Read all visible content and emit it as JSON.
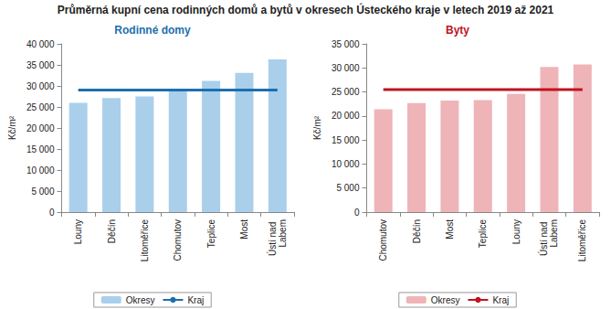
{
  "title": "Průměrná kupní cena rodinných domů a bytů v okresech Ústeckého kraje v letech 2019 až 2021",
  "chart_data": [
    {
      "type": "bar",
      "title": "Rodinné domy",
      "y_label": "Kč/m²",
      "categories": [
        "Louny",
        "Děčín",
        "Litoměřice",
        "Chomutov",
        "Teplice",
        "Most",
        "Ústí nad Labem"
      ],
      "series": [
        {
          "name": "Okresy",
          "type": "bar",
          "color": "#a9cfeb",
          "values": [
            26000,
            27100,
            27500,
            29200,
            31200,
            33100,
            36300
          ]
        },
        {
          "name": "Kraj",
          "type": "line",
          "color": "#1c6faf",
          "values": [
            29000,
            29000,
            29000,
            29000,
            29000,
            29000,
            29000
          ]
        }
      ],
      "ylim": [
        0,
        40000
      ],
      "yticks": [
        0,
        {
          "value": 5000,
          "label": "5 000"
        },
        {
          "value": 10000,
          "label": "10 000"
        },
        {
          "value": 15000,
          "label": "15 000"
        },
        {
          "value": 20000,
          "label": "20 000"
        },
        {
          "value": 25000,
          "label": "25 000"
        },
        {
          "value": 30000,
          "label": "30 000"
        },
        {
          "value": 35000,
          "label": "35 000"
        },
        {
          "value": 40000,
          "label": "40 000"
        }
      ],
      "grid": false,
      "legend": "bottom"
    },
    {
      "type": "bar",
      "title": "Byty",
      "y_label": "Kč/m²",
      "categories": [
        "Chomutov",
        "Děčín",
        "Most",
        "Teplice",
        "Louny",
        "Ústí nad Labem",
        "Litoměřice"
      ],
      "series": [
        {
          "name": "Okresy",
          "type": "bar",
          "color": "#efb4b8",
          "values": [
            21400,
            22700,
            23200,
            23300,
            24600,
            30200,
            30700
          ]
        },
        {
          "name": "Kraj",
          "type": "line",
          "color": "#c0141e",
          "values": [
            25500,
            25500,
            25500,
            25500,
            25500,
            25500,
            25500
          ]
        }
      ],
      "ylim": [
        0,
        35000
      ],
      "yticks": [
        0,
        {
          "value": 5000,
          "label": "5 000"
        },
        {
          "value": 10000,
          "label": "10 000"
        },
        {
          "value": 15000,
          "label": "15 000"
        },
        {
          "value": 20000,
          "label": "20 000"
        },
        {
          "value": 25000,
          "label": "25 000"
        },
        {
          "value": 30000,
          "label": "30 000"
        },
        {
          "value": 35000,
          "label": "35 000"
        }
      ],
      "grid": false,
      "legend": "bottom"
    }
  ]
}
